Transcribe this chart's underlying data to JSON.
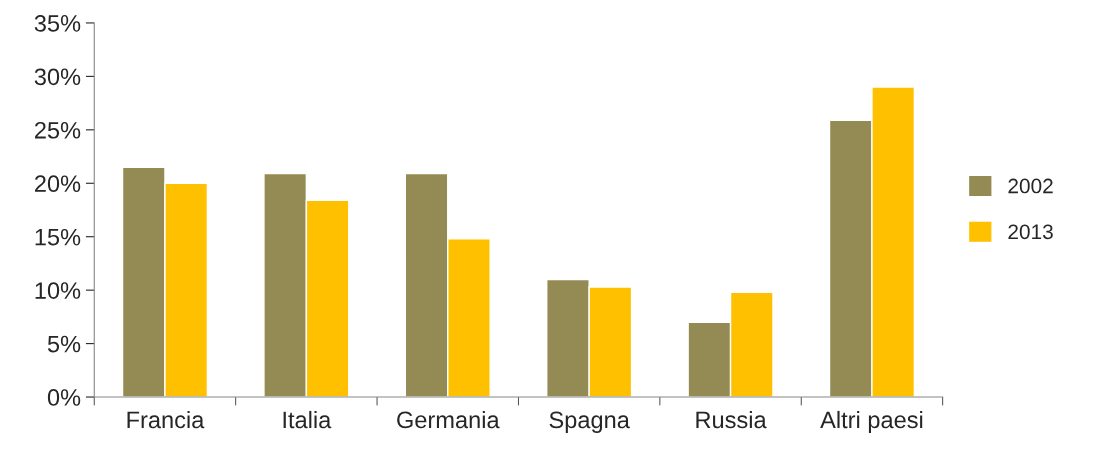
{
  "chart_data": {
    "type": "bar",
    "categories": [
      "Francia",
      "Italia",
      "Germania",
      "Spagna",
      "Russia",
      "Altri paesi"
    ],
    "series": [
      {
        "name": "2002",
        "color": "#948a54",
        "values": [
          21.5,
          20.9,
          20.9,
          11.0,
          7.0,
          25.9
        ]
      },
      {
        "name": "2013",
        "color": "#ffc000",
        "values": [
          20.0,
          18.4,
          14.8,
          10.3,
          9.8,
          29.0
        ]
      }
    ],
    "ylim": [
      0,
      35
    ],
    "yticks": [
      {
        "value": 0,
        "label": "0%"
      },
      {
        "value": 5,
        "label": "5%"
      },
      {
        "value": 10,
        "label": "10%"
      },
      {
        "value": 15,
        "label": "15%"
      },
      {
        "value": 20,
        "label": "20%"
      },
      {
        "value": 25,
        "label": "25%"
      },
      {
        "value": 30,
        "label": "30%"
      },
      {
        "value": 35,
        "label": "35%"
      }
    ],
    "grid": false,
    "legend": "right"
  }
}
